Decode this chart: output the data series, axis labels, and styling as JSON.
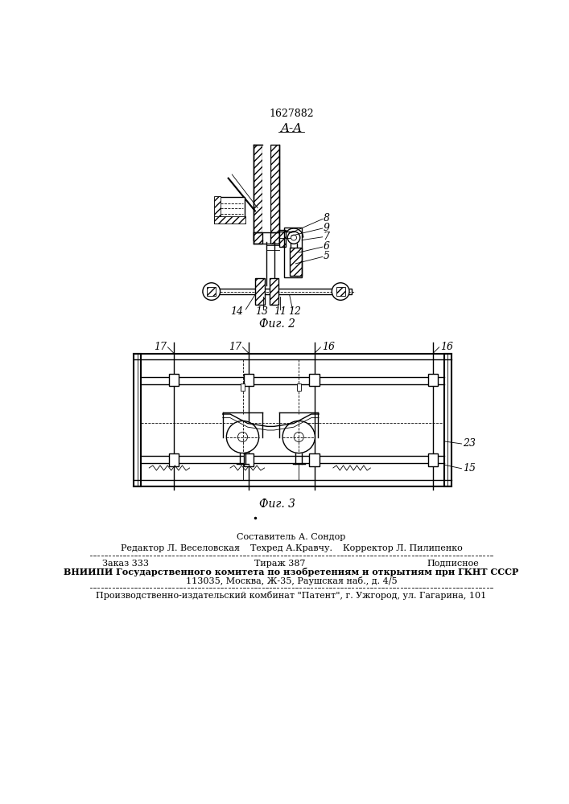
{
  "patent_number": "1627882",
  "fig2_label": "Фиг. 2",
  "fig3_label": "Фиг. 3",
  "section_label": "A-A",
  "bg_color": "#ffffff",
  "line_color": "#000000",
  "footer": {
    "line1_center": "Составитель А. Сондор",
    "line1_left": "Редактор Л. Веселовская",
    "line1_right": "Корректор Л. Пилипенко",
    "line2_center": "Техред А.Кравчу.",
    "line3_left": "Заказ 333",
    "line3_center": "Тираж 387",
    "line3_right": "Подписное",
    "line4": "ВНИИПИ Государственного комитета по изобретениям и открытиям при ГКНТ СССР",
    "line5": "113035, Москва, Ж-35, Раушская наб., д. 4/5",
    "line6": "Производственно-издательский комбинат \"Патент\", г. Ужгород, ул. Гагарина, 101"
  }
}
